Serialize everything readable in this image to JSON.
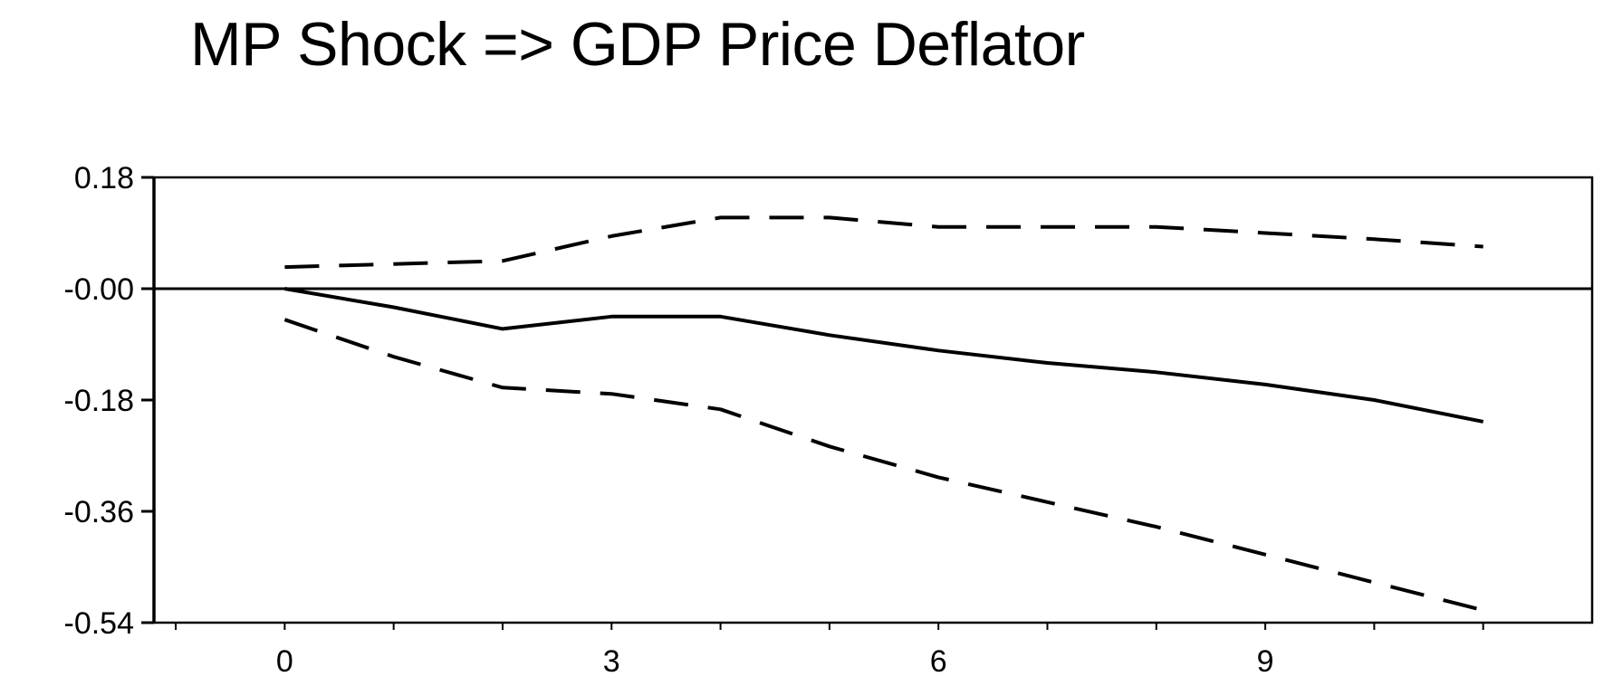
{
  "chart_data": {
    "type": "line",
    "title": "MP Shock => GDP Price Deflator",
    "xlabel": "",
    "ylabel": "",
    "xlim": [
      -1.2,
      12
    ],
    "ylim": [
      -0.54,
      0.18
    ],
    "x_ticks": [
      0,
      3,
      6,
      9
    ],
    "x_tick_labels": [
      "0",
      "3",
      "6",
      "9"
    ],
    "y_ticks": [
      0.18,
      0.0,
      -0.18,
      -0.36,
      -0.54
    ],
    "y_tick_labels": [
      "0.18",
      "-0.00",
      "-0.18",
      "-0.36",
      "-0.54"
    ],
    "zero_line": true,
    "grid": false,
    "series": [
      {
        "style": "solid",
        "x": [
          0,
          1,
          2,
          3,
          4,
          5,
          6,
          7,
          8,
          9,
          10,
          11
        ],
        "y": [
          0.0,
          -0.03,
          -0.065,
          -0.045,
          -0.045,
          -0.075,
          -0.1,
          -0.12,
          -0.135,
          -0.155,
          -0.18,
          -0.215
        ]
      },
      {
        "style": "dashed",
        "x": [
          0,
          1,
          2,
          3,
          4,
          5,
          6,
          7,
          8,
          9,
          10,
          11
        ],
        "y": [
          0.035,
          0.04,
          0.045,
          0.085,
          0.115,
          0.115,
          0.1,
          0.1,
          0.1,
          0.09,
          0.08,
          0.068
        ]
      },
      {
        "style": "dashed",
        "x": [
          0,
          1,
          2,
          3,
          4,
          5,
          6,
          7,
          8,
          9,
          10,
          11
        ],
        "y": [
          -0.05,
          -0.11,
          -0.16,
          -0.17,
          -0.195,
          -0.255,
          -0.305,
          -0.345,
          -0.385,
          -0.43,
          -0.475,
          -0.52
        ]
      }
    ]
  }
}
